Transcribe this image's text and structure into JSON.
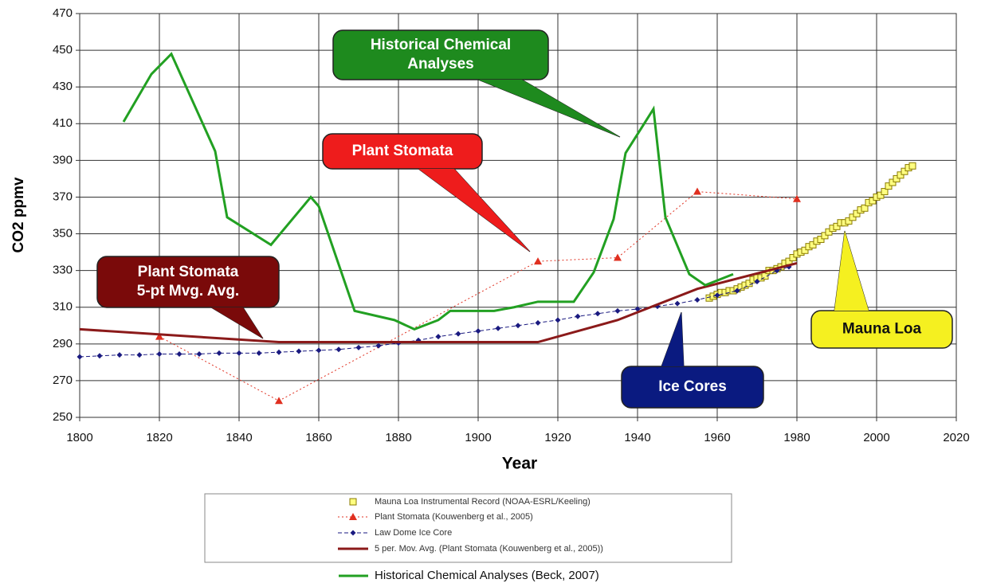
{
  "chart_data": {
    "type": "line",
    "xlabel": "Year",
    "ylabel": "CO2 ppmv",
    "xlim": [
      1800,
      2020
    ],
    "xticks": [
      1800,
      1820,
      1840,
      1860,
      1880,
      1900,
      1920,
      1940,
      1960,
      1980,
      2000,
      2020
    ],
    "ylim": [
      250,
      470
    ],
    "yticks": [
      250,
      270,
      290,
      310,
      330,
      350,
      370,
      390,
      410,
      430,
      450,
      470
    ],
    "grid": true,
    "series": [
      {
        "name": "Mauna Loa Instrumental Record (NOAA-ESRL/Keeling)",
        "color": "#e8d800",
        "marker": "square",
        "line": false,
        "x": [
          1958,
          1959,
          1960,
          1961,
          1962,
          1963,
          1964,
          1965,
          1966,
          1967,
          1968,
          1969,
          1970,
          1971,
          1972,
          1973,
          1974,
          1975,
          1976,
          1977,
          1978,
          1979,
          1980,
          1981,
          1982,
          1983,
          1984,
          1985,
          1986,
          1987,
          1988,
          1989,
          1990,
          1991,
          1992,
          1993,
          1994,
          1995,
          1996,
          1997,
          1998,
          1999,
          2000,
          2001,
          2002,
          2003,
          2004,
          2005,
          2006,
          2007,
          2008,
          2009
        ],
        "values": [
          315,
          316,
          317,
          318,
          318,
          319,
          319,
          320,
          321,
          322,
          323,
          325,
          326,
          326,
          327,
          330,
          330,
          331,
          332,
          334,
          335,
          337,
          339,
          340,
          341,
          343,
          344,
          346,
          347,
          349,
          351,
          353,
          354,
          356,
          356,
          357,
          359,
          361,
          363,
          364,
          367,
          368,
          370,
          371,
          373,
          376,
          378,
          380,
          382,
          384,
          386,
          387
        ]
      },
      {
        "name": "Plant Stomata (Kouwenberg et al., 2005)",
        "color": "#e03020",
        "marker": "triangle",
        "line": true,
        "dash": "2 3",
        "width": 1,
        "x": [
          1820,
          1850,
          1915,
          1935,
          1955,
          1980
        ],
        "values": [
          294,
          259,
          335,
          337,
          373,
          369
        ]
      },
      {
        "name": "Law Dome Ice Core",
        "color": "#1a1a80",
        "marker": "diamond",
        "line": true,
        "dash": "5 3",
        "width": 1,
        "x": [
          1800,
          1805,
          1810,
          1815,
          1820,
          1825,
          1830,
          1835,
          1840,
          1845,
          1850,
          1855,
          1860,
          1865,
          1870,
          1875,
          1880,
          1885,
          1890,
          1895,
          1900,
          1905,
          1910,
          1915,
          1920,
          1925,
          1930,
          1935,
          1940,
          1945,
          1950,
          1955,
          1960,
          1965,
          1970,
          1975,
          1978
        ],
        "values": [
          283,
          283.5,
          284,
          284,
          284.5,
          284.5,
          284.5,
          285,
          285,
          285,
          285.5,
          286,
          286.5,
          287,
          288,
          289,
          290.5,
          292,
          294,
          295.5,
          297,
          298.5,
          300,
          301.5,
          303,
          305,
          306.5,
          308,
          309,
          310.5,
          312,
          314,
          316.5,
          319,
          324,
          330,
          332
        ]
      },
      {
        "name": "5 per. Mov. Avg. (Plant Stomata (Kouwenberg et al., 2005))",
        "color": "#8b1a1a",
        "marker": null,
        "line": true,
        "width": 3,
        "x": [
          1800,
          1850,
          1915,
          1935,
          1955,
          1980
        ],
        "values": [
          298,
          291,
          291,
          303,
          320,
          334
        ]
      },
      {
        "name": "Historical Chemical Analyses (Beck, 2007)",
        "color": "#22a022",
        "marker": null,
        "line": true,
        "width": 3,
        "x": [
          1811,
          1818,
          1823,
          1834,
          1837,
          1848,
          1858,
          1860,
          1869,
          1879,
          1884,
          1890,
          1893,
          1904,
          1909,
          1915,
          1924,
          1929,
          1934,
          1937,
          1944,
          1947,
          1953,
          1957,
          1964
        ],
        "values": [
          411,
          437,
          448,
          395,
          359,
          344,
          370,
          365,
          308,
          303,
          298,
          303,
          308,
          308,
          310,
          313,
          313,
          329,
          358,
          394,
          418,
          359,
          328,
          322,
          328
        ]
      }
    ],
    "annotations": [
      {
        "lines": [
          "Historical Chemical",
          "Analyses"
        ],
        "color": "#1e8a1e"
      },
      {
        "lines": [
          "Plant Stomata"
        ],
        "color": "#ee1c1c"
      },
      {
        "lines": [
          "Plant Stomata",
          "5-pt Mvg. Avg."
        ],
        "color": "#7a0a0a"
      },
      {
        "lines": [
          "Ice Cores"
        ],
        "color": "#0a1a80"
      },
      {
        "lines": [
          "Mauna Loa"
        ],
        "color": "#f5f020"
      }
    ]
  }
}
